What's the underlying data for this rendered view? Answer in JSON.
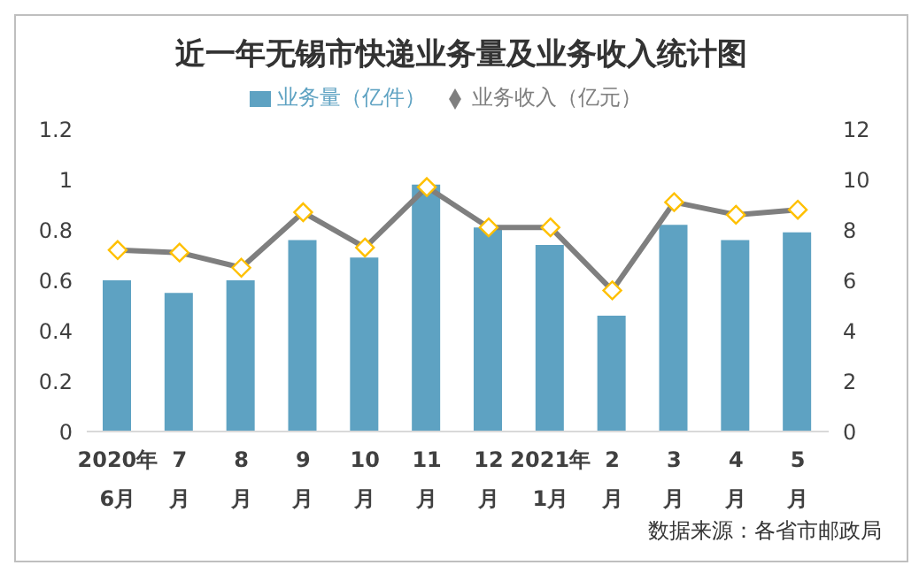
{
  "chart_data": {
    "type": "bar",
    "title": "近一年无锡市快递业务量及业务收入统计图",
    "categories": [
      "2020年\n6月",
      "7\n月",
      "8\n月",
      "9\n月",
      "10\n月",
      "11\n月",
      "12\n月",
      "2021年\n1月",
      "2\n月",
      "3\n月",
      "4\n月",
      "5\n月"
    ],
    "series": [
      {
        "name": "业务量（亿件）",
        "color": "#5ea2c2",
        "values": [
          0.6,
          0.55,
          0.6,
          0.76,
          0.69,
          0.98,
          0.81,
          0.74,
          0.46,
          0.82,
          0.76,
          0.79
        ]
      },
      {
        "name": "业务收入（亿元）",
        "type": "line",
        "axis": "y2",
        "color": "#7f7f7f",
        "marker": "diamond",
        "values": [
          7.2,
          7.1,
          6.5,
          8.7,
          7.3,
          9.7,
          8.1,
          8.1,
          5.6,
          9.1,
          8.6,
          8.8
        ]
      }
    ],
    "ylim": [
      0,
      1.2
    ],
    "yticks": [
      0,
      0.2,
      0.4,
      0.6,
      0.8,
      1,
      1.2
    ],
    "y2lim": [
      0,
      12
    ],
    "y2ticks": [
      0,
      2,
      4,
      6,
      8,
      10,
      12
    ],
    "legend": "top",
    "annotations": [
      "数据来源：各省市邮政局"
    ]
  }
}
